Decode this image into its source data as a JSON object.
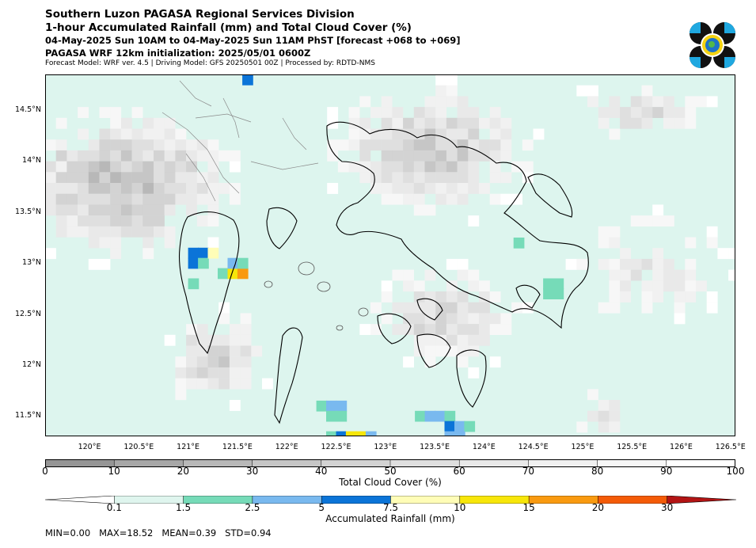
{
  "header": {
    "title": "Southern Luzon PAGASA Regional Services Division",
    "subtitle": "1-hour Accumulated Rainfall (mm) and Total Cloud Cover (%)",
    "valid_time": "04-May-2025 Sun 10AM to 04-May-2025 Sun 11AM PhST [forecast +068 to +069]",
    "init": "PAGASA WRF 12km initialization: 2025/05/01 0600Z",
    "model_info": "Forecast Model: WRF ver. 4.5 | Driving Model: GFS 20250501 00Z | Processed by: RDTD-NMS"
  },
  "map": {
    "extent": {
      "lon": [
        119.55,
        126.55
      ],
      "lat": [
        11.3,
        14.85
      ]
    },
    "lat_labels": [
      "14.5°N",
      "14°N",
      "13.5°N",
      "13°N",
      "12.5°N",
      "12°N",
      "11.5°N"
    ],
    "lat_values": [
      14.5,
      14.0,
      13.5,
      13.0,
      12.5,
      12.0,
      11.5
    ],
    "lon_labels": [
      "120°E",
      "120.5°E",
      "121°E",
      "121.5°E",
      "122°E",
      "122.5°E",
      "123°E",
      "123.5°E",
      "124°E",
      "124.5°E",
      "125°E",
      "125.5°E",
      "126°E",
      "126.5°E"
    ],
    "lon_values": [
      120.0,
      120.5,
      121.0,
      121.5,
      122.0,
      122.5,
      123.0,
      123.5,
      124.0,
      124.5,
      125.0,
      125.5,
      126.0,
      126.5
    ]
  },
  "cloud_colorbar": {
    "label": "Total Cloud Cover (%)",
    "ticks": [
      "0",
      "10",
      "20",
      "30",
      "40",
      "50",
      "60",
      "70",
      "80",
      "90",
      "100"
    ],
    "colors": [
      "#959595",
      "#a7a7a7",
      "#b8b8b8",
      "#c6c6c6",
      "#d3d3d3",
      "#dfdfdf",
      "#e9e9e9",
      "#f1f1f1",
      "#f7f7f7",
      "#ffffff"
    ]
  },
  "rain_colorbar": {
    "label": "Accumulated Rainfall (mm)",
    "ticks": [
      "0.1",
      "1.5",
      "2.5",
      "5",
      "7.5",
      "10",
      "15",
      "20",
      "30"
    ],
    "colors": [
      "#ffffff",
      "#dff5ee",
      "#76dbb8",
      "#79b9ef",
      "#0b74d8",
      "#fffdb7",
      "#f7e60a",
      "#f99a10",
      "#f45b07",
      "#b31414"
    ]
  },
  "stats": "MIN=0.00   MAX=18.52   MEAN=0.39   STD=0.94",
  "colors": {
    "ocean": "#ddf5ee",
    "coast": "#000000",
    "border": "#8a8a8a"
  }
}
